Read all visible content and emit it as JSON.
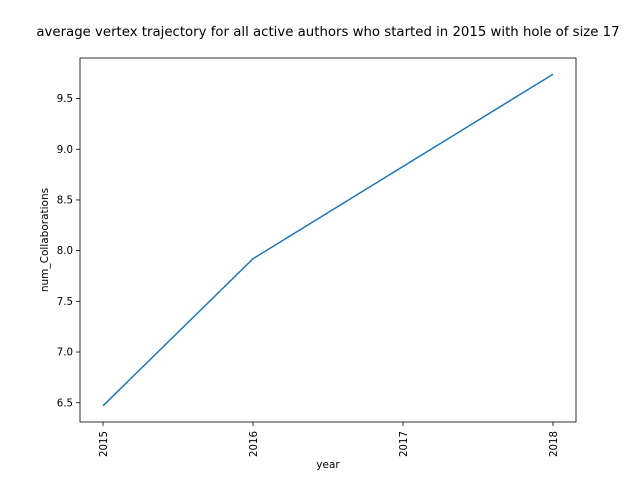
{
  "chart_data": {
    "type": "line",
    "title": "average vertex trajectory for all active authors who started in 2015 with hole of size 17",
    "xlabel": "year",
    "ylabel": "num_Collaborations",
    "x_ticks": [
      "2015",
      "2016",
      "2017",
      "2018"
    ],
    "y_ticks": [
      "6.5",
      "7.0",
      "7.5",
      "8.0",
      "8.5",
      "9.0",
      "9.5"
    ],
    "ylim": [
      6.31,
      9.9
    ],
    "grid": false,
    "series": [
      {
        "color": "#1f77b4",
        "x": [
          2015,
          2016,
          2018
        ],
        "y": [
          6.47,
          7.92,
          9.74
        ]
      }
    ]
  }
}
